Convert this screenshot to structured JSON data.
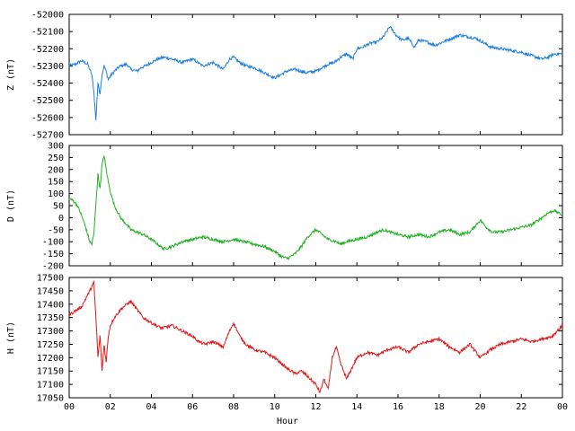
{
  "chart_data": [
    {
      "type": "line",
      "ylabel": "Z (nT)",
      "color": "#1a7ee0",
      "ylim": [
        -52700,
        -52000
      ],
      "yticks": [
        -52000,
        -52100,
        -52200,
        -52300,
        -52400,
        -52500,
        -52600,
        -52700
      ],
      "xlim": [
        0,
        24
      ],
      "series": [
        {
          "x": [
            0,
            0.3,
            0.6,
            0.9,
            1.1,
            1.2,
            1.3,
            1.35,
            1.4,
            1.5,
            1.6,
            1.7,
            1.8,
            1.9,
            2.0,
            2.2,
            2.5,
            2.8,
            3.0,
            3.3,
            3.5,
            3.7,
            4.0,
            4.3,
            4.6,
            5.0,
            5.5,
            6.0,
            6.5,
            7.0,
            7.5,
            7.8,
            8.0,
            8.3,
            8.6,
            9.0,
            9.5,
            10.0,
            10.3,
            10.6,
            11.0,
            11.5,
            12.0,
            12.3,
            12.6,
            12.9,
            13.2,
            13.5,
            13.8,
            14.0,
            14.3,
            14.6,
            15.0,
            15.3,
            15.6,
            15.9,
            16.2,
            16.5,
            16.8,
            17.0,
            17.4,
            17.8,
            18.2,
            18.6,
            19.0,
            19.4,
            19.8,
            20.1,
            20.5,
            21.0,
            21.5,
            22.0,
            22.5,
            23.0,
            23.3,
            23.6,
            24.0
          ],
          "values": [
            -52300,
            -52290,
            -52270,
            -52290,
            -52350,
            -52450,
            -52620,
            -52500,
            -52400,
            -52460,
            -52350,
            -52300,
            -52330,
            -52380,
            -52360,
            -52330,
            -52300,
            -52290,
            -52320,
            -52330,
            -52310,
            -52300,
            -52280,
            -52260,
            -52250,
            -52260,
            -52280,
            -52260,
            -52300,
            -52280,
            -52320,
            -52260,
            -52250,
            -52280,
            -52300,
            -52310,
            -52340,
            -52370,
            -52350,
            -52330,
            -52320,
            -52340,
            -52330,
            -52310,
            -52290,
            -52280,
            -52250,
            -52230,
            -52260,
            -52200,
            -52190,
            -52170,
            -52160,
            -52130,
            -52070,
            -52120,
            -52150,
            -52140,
            -52190,
            -52150,
            -52160,
            -52180,
            -52160,
            -52140,
            -52120,
            -52130,
            -52140,
            -52160,
            -52190,
            -52200,
            -52210,
            -52220,
            -52240,
            -52260,
            -52250,
            -52230,
            -52230
          ]
        }
      ]
    },
    {
      "type": "line",
      "ylabel": "D (nT)",
      "color": "#22b022",
      "ylim": [
        -200,
        300
      ],
      "yticks": [
        300,
        250,
        200,
        150,
        100,
        50,
        0,
        -50,
        -100,
        -150,
        -200
      ],
      "xlim": [
        0,
        24
      ],
      "series": [
        {
          "x": [
            0,
            0.2,
            0.4,
            0.6,
            0.8,
            1.0,
            1.1,
            1.2,
            1.3,
            1.4,
            1.5,
            1.6,
            1.7,
            1.8,
            1.9,
            2.0,
            2.2,
            2.5,
            2.8,
            3.0,
            3.3,
            3.6,
            4.0,
            4.3,
            4.6,
            5.0,
            5.5,
            6.0,
            6.5,
            7.0,
            7.5,
            8.0,
            8.5,
            9.0,
            9.5,
            10.0,
            10.3,
            10.6,
            11.0,
            11.3,
            11.6,
            12.0,
            12.3,
            12.6,
            13.0,
            13.2,
            13.5,
            14.0,
            14.5,
            15.0,
            15.3,
            15.6,
            16.0,
            16.5,
            17.0,
            17.5,
            18.0,
            18.5,
            19.0,
            19.5,
            20.0,
            20.3,
            20.6,
            21.0,
            21.5,
            22.0,
            22.5,
            23.0,
            23.3,
            23.6,
            24.0
          ],
          "values": [
            80,
            70,
            50,
            10,
            -40,
            -100,
            -110,
            -70,
            60,
            180,
            120,
            220,
            260,
            200,
            150,
            110,
            50,
            0,
            -30,
            -50,
            -60,
            -70,
            -90,
            -110,
            -130,
            -120,
            -100,
            -90,
            -80,
            -90,
            -100,
            -90,
            -100,
            -110,
            -120,
            -140,
            -160,
            -170,
            -150,
            -120,
            -80,
            -50,
            -70,
            -90,
            -100,
            -110,
            -100,
            -90,
            -80,
            -60,
            -50,
            -60,
            -70,
            -80,
            -70,
            -80,
            -60,
            -50,
            -70,
            -60,
            -10,
            -40,
            -60,
            -60,
            -50,
            -40,
            -30,
            0,
            20,
            30,
            10
          ]
        }
      ]
    },
    {
      "type": "line",
      "ylabel": "H (nT)",
      "xlabel": "Hour",
      "color": "#e01818",
      "ylim": [
        17050,
        17500
      ],
      "yticks": [
        17500,
        17450,
        17400,
        17350,
        17300,
        17250,
        17200,
        17150,
        17100,
        17050
      ],
      "xlim": [
        0,
        24
      ],
      "xticks": [
        "00",
        "02",
        "04",
        "06",
        "08",
        "10",
        "12",
        "14",
        "16",
        "18",
        "20",
        "22",
        "00"
      ],
      "series": [
        {
          "x": [
            0,
            0.2,
            0.4,
            0.6,
            0.8,
            1.0,
            1.2,
            1.3,
            1.4,
            1.5,
            1.6,
            1.7,
            1.8,
            1.9,
            2.0,
            2.2,
            2.5,
            2.8,
            3.0,
            3.3,
            3.6,
            4.0,
            4.5,
            5.0,
            5.5,
            6.0,
            6.3,
            6.6,
            7.0,
            7.5,
            7.8,
            8.0,
            8.3,
            8.6,
            9.0,
            9.5,
            10.0,
            10.3,
            10.6,
            11.0,
            11.3,
            11.6,
            12.0,
            12.2,
            12.4,
            12.6,
            12.8,
            13.0,
            13.2,
            13.5,
            14.0,
            14.5,
            15.0,
            15.5,
            16.0,
            16.5,
            17.0,
            17.5,
            18.0,
            18.5,
            19.0,
            19.5,
            20.0,
            20.5,
            21.0,
            21.5,
            22.0,
            22.5,
            23.0,
            23.5,
            24.0
          ],
          "values": [
            17360,
            17370,
            17380,
            17390,
            17420,
            17450,
            17480,
            17350,
            17200,
            17280,
            17150,
            17250,
            17180,
            17280,
            17320,
            17350,
            17380,
            17400,
            17410,
            17380,
            17350,
            17330,
            17310,
            17320,
            17300,
            17280,
            17260,
            17250,
            17260,
            17240,
            17300,
            17330,
            17280,
            17250,
            17230,
            17220,
            17200,
            17180,
            17160,
            17140,
            17150,
            17130,
            17100,
            17070,
            17120,
            17080,
            17200,
            17240,
            17180,
            17120,
            17200,
            17220,
            17210,
            17230,
            17240,
            17220,
            17250,
            17260,
            17270,
            17240,
            17220,
            17250,
            17200,
            17230,
            17250,
            17260,
            17270,
            17260,
            17270,
            17280,
            17320
          ]
        }
      ]
    }
  ]
}
